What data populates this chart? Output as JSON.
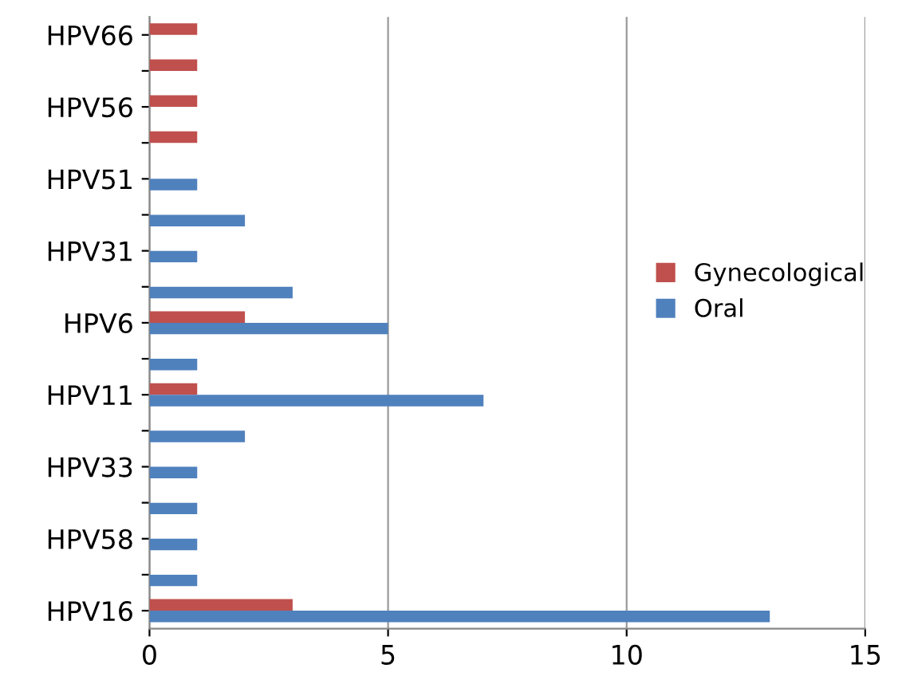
{
  "chart_data": {
    "type": "bar",
    "orientation": "horizontal",
    "categories": [
      "HPV66",
      null,
      "HPV56",
      null,
      "HPV51",
      null,
      "HPV31",
      null,
      "HPV6",
      null,
      "HPV11",
      null,
      "HPV33",
      null,
      "HPV58",
      null,
      "HPV16"
    ],
    "series": [
      {
        "name": "Gynecological",
        "color": "#c0504d",
        "values": [
          1,
          1,
          1,
          1,
          null,
          null,
          null,
          null,
          2,
          null,
          1,
          null,
          null,
          null,
          null,
          null,
          3
        ]
      },
      {
        "name": "Oral",
        "color": "#4f81bd",
        "values": [
          null,
          null,
          null,
          null,
          1,
          2,
          1,
          3,
          5,
          1,
          7,
          2,
          1,
          1,
          1,
          1,
          13
        ]
      }
    ],
    "xlim": [
      0,
      15
    ],
    "xticks": [
      0,
      5,
      10,
      15
    ],
    "grid": "x",
    "legend": "right"
  }
}
